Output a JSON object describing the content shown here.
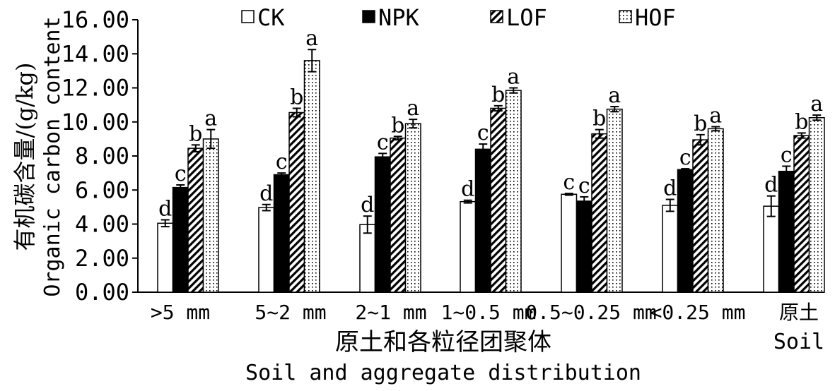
{
  "chart_data": {
    "type": "bar",
    "title": "",
    "ylabel_cn": "有机碳含量/(g/kg)",
    "ylabel_en": "Organic carbon content",
    "xlabel_cn": "原土和各粒径团聚体",
    "xlabel_en": "Soil and aggregate distribution",
    "ylim": [
      0,
      16
    ],
    "yticks": [
      "0.00",
      "2.00",
      "4.00",
      "6.00",
      "8.00",
      "10.00",
      "12.00",
      "14.00",
      "16.00"
    ],
    "categories": [
      ">5 mm",
      "5~2 mm",
      "2~1 mm",
      "1~0.5 mm",
      "0.5~0.25 mm",
      "<0.25 mm",
      "原土"
    ],
    "category_sublabels": [
      "",
      "",
      "",
      "",
      "",
      "",
      "Soil"
    ],
    "legend_position": "top",
    "series": [
      {
        "name": "CK",
        "pattern": "white",
        "values": [
          4.05,
          4.97,
          3.97,
          5.32,
          5.75,
          5.1,
          5.05
        ],
        "errors": [
          0.2,
          0.18,
          0.5,
          0.08,
          0.05,
          0.35,
          0.6
        ],
        "letters": [
          "d",
          "d",
          "d",
          "d",
          "c",
          "d",
          "d"
        ]
      },
      {
        "name": "NPK",
        "pattern": "black",
        "values": [
          6.15,
          6.9,
          7.95,
          8.4,
          5.35,
          7.2,
          7.1
        ],
        "errors": [
          0.15,
          0.1,
          0.2,
          0.3,
          0.25,
          0.05,
          0.3
        ],
        "letters": [
          "c",
          "c",
          "c",
          "c",
          "c",
          "c",
          "c"
        ]
      },
      {
        "name": "LOF",
        "pattern": "hatch",
        "values": [
          8.45,
          10.55,
          9.05,
          10.8,
          9.3,
          8.95,
          9.2
        ],
        "errors": [
          0.2,
          0.25,
          0.1,
          0.15,
          0.25,
          0.3,
          0.15
        ],
        "letters": [
          "b",
          "b",
          "b",
          "b",
          "b",
          "b",
          "b"
        ]
      },
      {
        "name": "HOF",
        "pattern": "dots",
        "values": [
          9.0,
          13.6,
          9.9,
          11.85,
          10.75,
          9.6,
          10.25
        ],
        "errors": [
          0.55,
          0.65,
          0.25,
          0.15,
          0.15,
          0.12,
          0.15
        ],
        "letters": [
          "a",
          "a",
          "a",
          "a",
          "a",
          "a",
          "a"
        ]
      }
    ]
  }
}
